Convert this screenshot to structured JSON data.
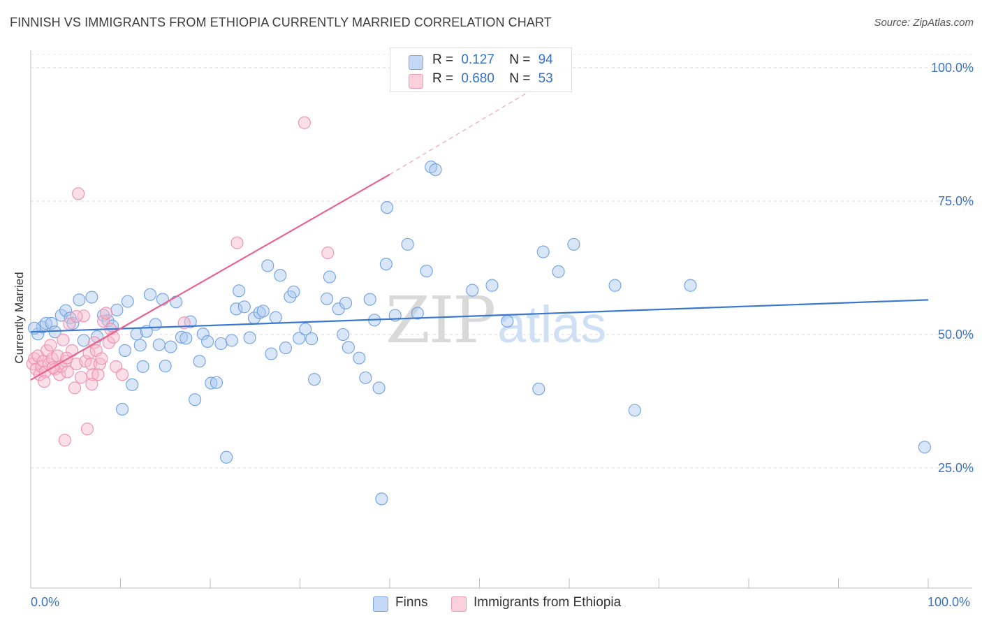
{
  "title": "FINNISH VS IMMIGRANTS FROM ETHIOPIA CURRENTLY MARRIED CORRELATION CHART",
  "source": "Source: ZipAtlas.com",
  "watermark": {
    "zip": "ZIP",
    "atlas": "atlas"
  },
  "legend_top": [
    {
      "r_label": "R =",
      "r_value": "0.127",
      "n_label": "N =",
      "n_value": "94",
      "color": "#a9c8f0"
    },
    {
      "r_label": "R =",
      "r_value": "0.680",
      "n_label": "N =",
      "n_value": "53",
      "color": "#f7b8cb"
    }
  ],
  "legend_bottom": [
    {
      "label": "Finns",
      "color": "#a9c8f0"
    },
    {
      "label": "Immigrants from Ethiopia",
      "color": "#f7b8cb"
    }
  ],
  "x_tick_labels": {
    "left": "0.0%",
    "right": "100.0%"
  },
  "chart_data": {
    "type": "scatter",
    "title": "FINNISH VS IMMIGRANTS FROM ETHIOPIA CURRENTLY MARRIED CORRELATION CHART",
    "xlabel": "",
    "ylabel": "Currently Married",
    "xlim": [
      0,
      100
    ],
    "ylim": [
      0,
      102
    ],
    "y_ticks": [
      25,
      50,
      75,
      100
    ],
    "y_tick_labels": [
      "25.0%",
      "50.0%",
      "75.0%",
      "100.0%"
    ],
    "grid": "horizontal dashed",
    "legend_position": "top-center",
    "series": [
      {
        "name": "Finns",
        "color": "#6fa0e0",
        "fill": "#a9c8f0",
        "trend": {
          "x": [
            0,
            100
          ],
          "y": [
            50.5,
            56.5
          ],
          "color": "#3a78d0"
        },
        "points": [
          [
            0.8,
            50.1
          ],
          [
            1.3,
            51.4
          ],
          [
            1.7,
            52.1
          ],
          [
            2.3,
            52.1
          ],
          [
            2.7,
            50.5
          ],
          [
            3.4,
            53.6
          ],
          [
            3.9,
            54.5
          ],
          [
            4.4,
            53.1
          ],
          [
            4.7,
            52.1
          ],
          [
            5.4,
            56.5
          ],
          [
            5.9,
            48.9
          ],
          [
            6.8,
            57.0
          ],
          [
            7.4,
            49.6
          ],
          [
            8.1,
            53.6
          ],
          [
            8.6,
            52.6
          ],
          [
            9.1,
            51.6
          ],
          [
            9.6,
            54.6
          ],
          [
            10.2,
            36.0
          ],
          [
            10.5,
            47.0
          ],
          [
            10.8,
            56.2
          ],
          [
            11.3,
            40.6
          ],
          [
            11.8,
            50.1
          ],
          [
            12.2,
            48.0
          ],
          [
            12.5,
            44.0
          ],
          [
            12.9,
            50.6
          ],
          [
            13.3,
            57.5
          ],
          [
            13.9,
            51.9
          ],
          [
            14.3,
            48.1
          ],
          [
            14.7,
            56.6
          ],
          [
            15.0,
            44.1
          ],
          [
            15.6,
            47.7
          ],
          [
            16.2,
            56.1
          ],
          [
            16.8,
            49.5
          ],
          [
            17.3,
            49.3
          ],
          [
            17.8,
            52.4
          ],
          [
            18.3,
            37.8
          ],
          [
            18.8,
            45.0
          ],
          [
            19.2,
            50.1
          ],
          [
            19.7,
            48.7
          ],
          [
            20.1,
            40.9
          ],
          [
            20.7,
            41.0
          ],
          [
            21.2,
            48.3
          ],
          [
            21.8,
            27.0
          ],
          [
            22.4,
            48.9
          ],
          [
            22.9,
            54.8
          ],
          [
            23.2,
            58.2
          ],
          [
            23.8,
            55.2
          ],
          [
            24.4,
            49.4
          ],
          [
            24.9,
            53.1
          ],
          [
            25.5,
            54.1
          ],
          [
            25.9,
            54.4
          ],
          [
            26.4,
            62.9
          ],
          [
            26.8,
            46.4
          ],
          [
            27.3,
            53.2
          ],
          [
            27.8,
            61.1
          ],
          [
            28.4,
            47.5
          ],
          [
            28.9,
            57.1
          ],
          [
            29.3,
            58.0
          ],
          [
            29.9,
            49.3
          ],
          [
            30.6,
            51.0
          ],
          [
            31.3,
            49.2
          ],
          [
            31.6,
            41.6
          ],
          [
            33.0,
            56.7
          ],
          [
            33.3,
            60.8
          ],
          [
            34.3,
            54.8
          ],
          [
            34.8,
            50.0
          ],
          [
            35.1,
            55.9
          ],
          [
            35.4,
            47.6
          ],
          [
            36.6,
            45.6
          ],
          [
            37.3,
            41.9
          ],
          [
            37.8,
            56.6
          ],
          [
            38.3,
            52.7
          ],
          [
            38.8,
            40.0
          ],
          [
            39.1,
            19.2
          ],
          [
            39.6,
            63.2
          ],
          [
            40.6,
            53.6
          ],
          [
            42.0,
            66.9
          ],
          [
            43.1,
            54.0
          ],
          [
            44.1,
            61.9
          ],
          [
            44.6,
            81.4
          ],
          [
            45.1,
            80.9
          ],
          [
            49.2,
            58.3
          ],
          [
            51.4,
            59.2
          ],
          [
            53.1,
            52.5
          ],
          [
            56.6,
            39.8
          ],
          [
            57.1,
            65.5
          ],
          [
            58.8,
            61.8
          ],
          [
            60.5,
            66.9
          ],
          [
            65.1,
            59.2
          ],
          [
            67.3,
            35.8
          ],
          [
            73.5,
            59.2
          ],
          [
            39.7,
            73.8
          ],
          [
            99.6,
            28.9
          ],
          [
            0.4,
            51.2
          ]
        ]
      },
      {
        "name": "Immigrants from Ethiopia",
        "color": "#ef8fb0",
        "fill": "#f7b8cb",
        "trend": {
          "x": [
            0,
            40
          ],
          "y": [
            41.5,
            80.0
          ],
          "color": "#e8648f",
          "dash_to": {
            "x": 60,
            "y": 100
          }
        },
        "points": [
          [
            0.2,
            44.5
          ],
          [
            0.4,
            45.5
          ],
          [
            0.6,
            43.5
          ],
          [
            0.8,
            46.0
          ],
          [
            1.0,
            42.5
          ],
          [
            1.2,
            44.0
          ],
          [
            1.4,
            45.0
          ],
          [
            1.6,
            43.0
          ],
          [
            1.8,
            47.0
          ],
          [
            2.0,
            44.5
          ],
          [
            2.2,
            48.0
          ],
          [
            2.4,
            45.5
          ],
          [
            2.7,
            43.5
          ],
          [
            3.0,
            46.0
          ],
          [
            3.2,
            42.5
          ],
          [
            3.4,
            44.0
          ],
          [
            3.6,
            49.0
          ],
          [
            3.9,
            45.0
          ],
          [
            4.1,
            43.0
          ],
          [
            4.3,
            52.0
          ],
          [
            4.6,
            47.0
          ],
          [
            4.9,
            40.0
          ],
          [
            5.1,
            44.5
          ],
          [
            5.3,
            76.4
          ],
          [
            5.6,
            42.0
          ],
          [
            5.9,
            53.5
          ],
          [
            6.1,
            45.0
          ],
          [
            6.3,
            32.3
          ],
          [
            6.5,
            46.5
          ],
          [
            6.7,
            44.5
          ],
          [
            6.9,
            42.5
          ],
          [
            7.1,
            48.5
          ],
          [
            7.3,
            47.0
          ],
          [
            7.5,
            42.5
          ],
          [
            7.7,
            44.5
          ],
          [
            7.9,
            45.5
          ],
          [
            8.1,
            52.5
          ],
          [
            8.4,
            54.0
          ],
          [
            8.7,
            48.5
          ],
          [
            8.9,
            51.0
          ],
          [
            9.2,
            49.5
          ],
          [
            9.5,
            44.0
          ],
          [
            10.2,
            42.5
          ],
          [
            3.8,
            30.2
          ],
          [
            17.1,
            52.2
          ],
          [
            23.0,
            67.2
          ],
          [
            33.1,
            65.3
          ],
          [
            30.5,
            89.7
          ],
          [
            5.1,
            53.4
          ],
          [
            1.5,
            41.2
          ],
          [
            2.5,
            43.8
          ],
          [
            4.0,
            45.6
          ],
          [
            6.8,
            40.7
          ]
        ]
      }
    ]
  }
}
